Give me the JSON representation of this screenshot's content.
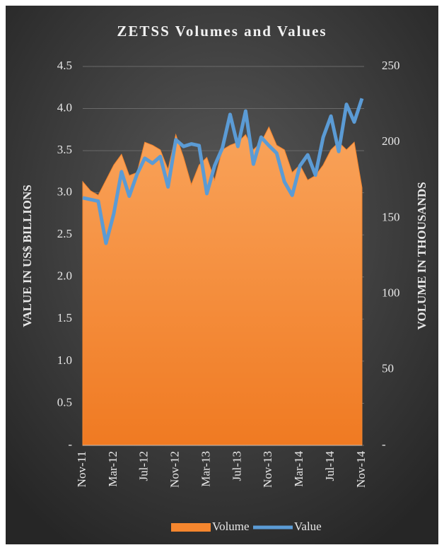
{
  "chart_data": {
    "type": "combo",
    "title": "ZETSS Volumes and Values",
    "ylabel": "VALUE IN US$ BILLIONS",
    "y2label": "VOLUME IN THOUSANDS",
    "categories": [
      "Nov-11",
      null,
      null,
      null,
      "Mar-12",
      null,
      null,
      null,
      "Jul-12",
      null,
      null,
      null,
      "Nov-12",
      null,
      null,
      null,
      "Mar-13",
      null,
      null,
      null,
      "Jul-13",
      null,
      null,
      null,
      "Nov-13",
      null,
      null,
      null,
      "Mar-14",
      null,
      null,
      null,
      "Jul-14",
      null,
      null,
      null,
      "Nov-14"
    ],
    "series": [
      {
        "name": "Volume",
        "type": "area",
        "axis": "y2",
        "color": "#f5862e",
        "values": [
          174,
          168,
          165,
          175,
          185,
          192,
          178,
          180,
          200,
          198,
          195,
          182,
          205,
          190,
          172,
          185,
          190,
          175,
          195,
          198,
          200,
          205,
          195,
          200,
          210,
          198,
          195,
          180,
          185,
          175,
          178,
          185,
          195,
          200,
          195,
          200,
          170
        ]
      },
      {
        "name": "Value",
        "type": "line",
        "color": "#5b9bd5",
        "values": [
          2.94,
          2.92,
          2.9,
          2.4,
          2.75,
          3.25,
          2.96,
          3.22,
          3.41,
          3.35,
          3.43,
          3.07,
          3.63,
          3.55,
          3.58,
          3.56,
          2.99,
          3.32,
          3.53,
          3.93,
          3.55,
          3.97,
          3.34,
          3.66,
          3.56,
          3.47,
          3.13,
          2.97,
          3.32,
          3.45,
          3.21,
          3.66,
          3.91,
          3.49,
          4.05,
          3.84,
          4.12
        ]
      }
    ],
    "ylim": [
      0,
      4.5
    ],
    "yticks": [
      {
        "value": 0,
        "label": "-"
      },
      0.5,
      {
        "value": 1,
        "label": "1.0"
      },
      1.5,
      {
        "value": 2,
        "label": "2.0"
      },
      2.5,
      {
        "value": 3,
        "label": "3.0"
      },
      3.5,
      {
        "value": 4,
        "label": "4.0"
      },
      4.5
    ],
    "y2lim": [
      0,
      250
    ],
    "y2ticks": [
      {
        "value": 0,
        "label": "-"
      },
      50,
      100,
      150,
      200,
      250
    ],
    "grid": true,
    "legend": "bottom"
  }
}
